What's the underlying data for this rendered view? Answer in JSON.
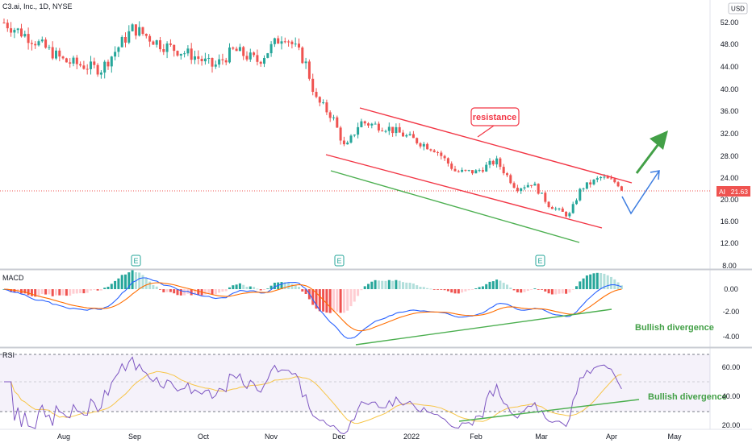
{
  "header": {
    "symbol_title": "C3.ai, Inc., 1D, NYSE",
    "currency": "USD"
  },
  "price_pane": {
    "price_tag": {
      "ticker": "AI",
      "value": "21.63"
    },
    "earnings_marker": "E",
    "y_ticks": [
      "52.00",
      "48.00",
      "44.00",
      "40.00",
      "36.00",
      "32.00",
      "28.00",
      "24.00",
      "20.00",
      "16.00",
      "12.00",
      "8.00"
    ]
  },
  "macd_pane": {
    "label": "MACD",
    "y_ticks": [
      "0.00",
      "-2.00",
      "-4.00"
    ]
  },
  "rsi_pane": {
    "label": "RSI",
    "y_ticks": [
      "60.00",
      "40.00",
      "20.00"
    ]
  },
  "x_axis": {
    "labels": [
      "Aug",
      "Sep",
      "Oct",
      "Nov",
      "Dec",
      "2022",
      "Feb",
      "Mar",
      "Apr",
      "May"
    ]
  },
  "annotations": {
    "resistance": "resistance",
    "macd_divergence": "Bullish divergence",
    "rsi_divergence": "Bullish divergence"
  },
  "colors": {
    "up": "#26a69a",
    "down": "#ef5350",
    "channel": "#f23645",
    "support": "#4caf50",
    "macd_line": "#2962ff",
    "signal_line": "#ff6d00",
    "rsi_line": "#7e57c2",
    "rsi_ma": "#f7c548",
    "arrow_up": "#43a047",
    "arrow_alt": "#3d7de0"
  },
  "chart_data": {
    "type": "candlestick",
    "title": "C3.ai, Inc., 1D, NYSE",
    "unit": "USD",
    "x_labels": [
      "Aug",
      "Sep",
      "Oct",
      "Nov",
      "Dec",
      "2022",
      "Feb",
      "Mar",
      "Apr",
      "May"
    ],
    "price_ylim": [
      8,
      54
    ],
    "price_approx_path": [
      {
        "t": "Jul",
        "close": 52
      },
      {
        "t": "Aug",
        "close": 49
      },
      {
        "t": "Aug-mid",
        "close": 45
      },
      {
        "t": "Sep",
        "close": 51
      },
      {
        "t": "Sep-mid",
        "close": 48
      },
      {
        "t": "Oct",
        "close": 44
      },
      {
        "t": "Oct-mid",
        "close": 47
      },
      {
        "t": "Nov",
        "close": 45
      },
      {
        "t": "Nov-mid",
        "close": 50
      },
      {
        "t": "Nov-late",
        "close": 38
      },
      {
        "t": "Dec",
        "close": 29
      },
      {
        "t": "Dec-mid",
        "close": 34
      },
      {
        "t": "2022",
        "close": 31
      },
      {
        "t": "Jan-mid",
        "close": 26
      },
      {
        "t": "Feb",
        "close": 25
      },
      {
        "t": "Feb-mid",
        "close": 22
      },
      {
        "t": "Mar",
        "close": 20
      },
      {
        "t": "Mar-mid",
        "close": 17
      },
      {
        "t": "Apr",
        "close": 23
      },
      {
        "t": "Apr-latest",
        "close": 21.63
      }
    ],
    "last_price": 21.63,
    "macd": {
      "ylim": [
        -5,
        1
      ],
      "signal_line": true,
      "histogram": true
    },
    "rsi": {
      "ylim": [
        20,
        65
      ],
      "bands": [
        30,
        50,
        70
      ]
    }
  }
}
